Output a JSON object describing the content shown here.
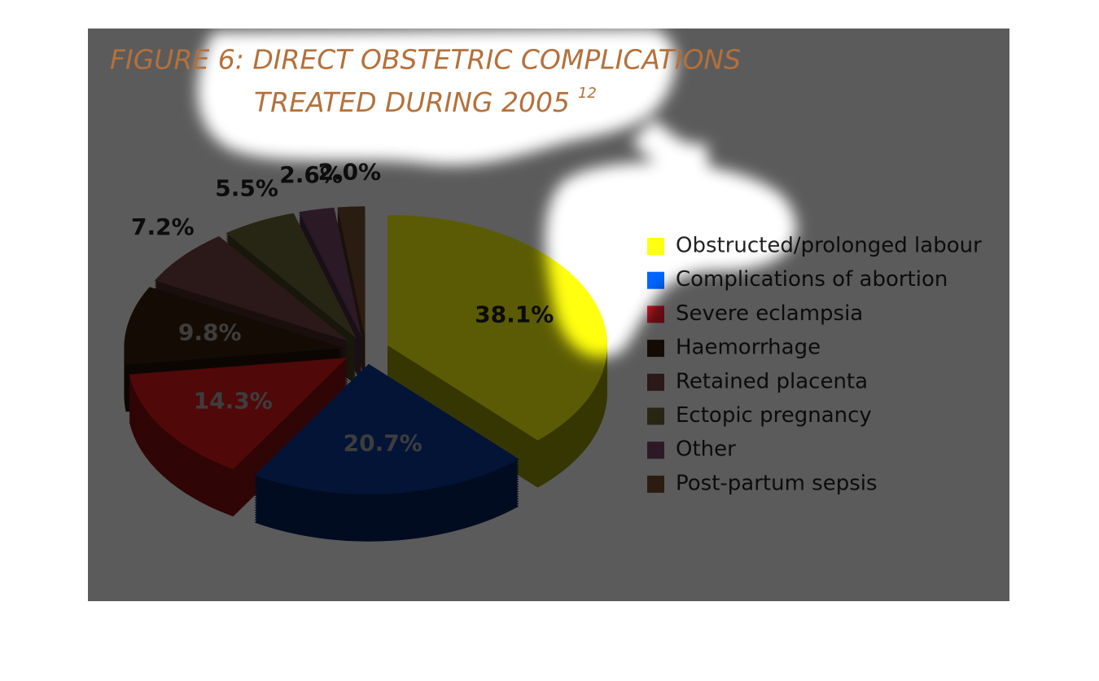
{
  "chart_data": {
    "type": "pie",
    "title": "FIGURE 6: DIRECT OBSTETRIC COMPLICATIONS",
    "subtitle": "TREATED DURING 2005",
    "title_note": "12",
    "categories": [
      "Obstructed/prolonged labour",
      "Complications of abortion",
      "Severe eclampsia",
      "Haemorrhage",
      "Retained placenta",
      "Ectopic pregnancy",
      "Other",
      "Post-partum sepsis"
    ],
    "values": [
      38.1,
      20.7,
      14.3,
      9.8,
      7.2,
      5.5,
      2.6,
      2.0
    ],
    "value_labels": [
      "38.1%",
      "20.7%",
      "14.3%",
      "9.8%",
      "7.2%",
      "5.5%",
      "2.6%",
      "2.0%"
    ],
    "colors": [
      "#ffff10",
      "#0a3a9a",
      "#e01818",
      "#3a2010",
      "#7a4545",
      "#6e6a3a",
      "#7a4a6a",
      "#7a5030"
    ],
    "legend_colors": [
      "#ffff10",
      "#0066ff",
      "#ff2030",
      "#3a2010",
      "#7a4545",
      "#6e6a3a",
      "#7a4a6a",
      "#7a5030"
    ],
    "legend": "right"
  }
}
